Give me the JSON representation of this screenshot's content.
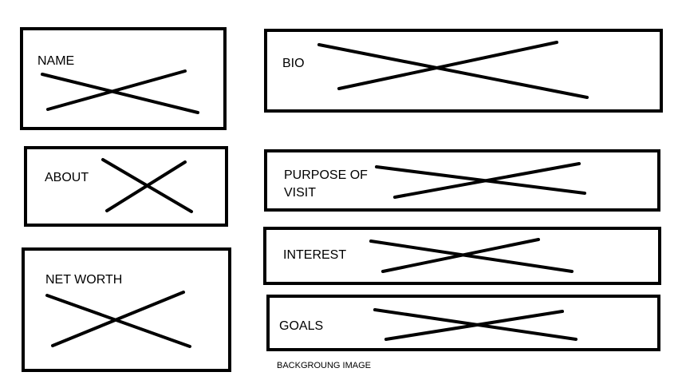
{
  "wireframe": {
    "left_column": {
      "name": {
        "label": "NAME"
      },
      "about": {
        "label": "ABOUT"
      },
      "net_worth": {
        "label": "NET WORTH"
      }
    },
    "right_column": {
      "bio": {
        "label": "BIO"
      },
      "purpose_of_visit": {
        "label": "PURPOSE OF\nVISIT"
      },
      "interest": {
        "label": "INTEREST"
      },
      "goals": {
        "label": "GOALS"
      }
    },
    "footer_label": "BACKGROUNG IMAGE"
  },
  "colors": {
    "stroke": "#000000",
    "background": "#ffffff"
  }
}
